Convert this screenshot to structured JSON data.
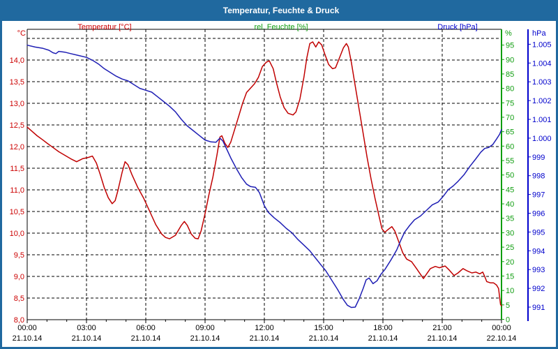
{
  "window": {
    "title": "Temperatur, Feuchte & Druck"
  },
  "legend": {
    "temperature": "Temperatur [°C]",
    "humidity": "rel. Feuchte [%]",
    "pressure": "Druck [hPa]"
  },
  "units": {
    "temperature": "°C",
    "humidity": "%",
    "pressure": "hPa"
  },
  "colors": {
    "titlebar": "#20699f",
    "temperature_label": "#cc0000",
    "temperature_curve": "#c00000",
    "humidity_label": "#0f9d0f",
    "humidity_axis": "#0f9d0f",
    "pressure_label": "#0000cc",
    "pressure_curve": "#1e1eb4",
    "grid": "#000000",
    "date_text": "#000000"
  },
  "chart_data": {
    "type": "line",
    "title": "Temperatur, Feuchte & Druck",
    "grid": "dashed, 0.5 °C horizontal steps, 3 h vertical steps",
    "legend_position": "top",
    "x_axis": {
      "range_hours": [
        0,
        24
      ],
      "major_tick_hours": 3,
      "minor_tick_hours": 1,
      "gridline_hours": [
        3,
        6,
        9,
        12,
        15,
        18,
        21
      ],
      "ticks": [
        {
          "hour": 0,
          "time": "00:00",
          "date": "21.10.14"
        },
        {
          "hour": 3,
          "time": "03:00",
          "date": "21.10.14"
        },
        {
          "hour": 6,
          "time": "06:00",
          "date": "21.10.14"
        },
        {
          "hour": 9,
          "time": "09:00",
          "date": "21.10.14"
        },
        {
          "hour": 12,
          "time": "12:00",
          "date": "21.10.14"
        },
        {
          "hour": 15,
          "time": "15:00",
          "date": "21.10.14"
        },
        {
          "hour": 18,
          "time": "18:00",
          "date": "21.10.14"
        },
        {
          "hour": 21,
          "time": "21:00",
          "date": "21.10.14"
        },
        {
          "hour": 24,
          "time": "00:00",
          "date": "22.10.14"
        }
      ]
    },
    "y_axis_temperature": {
      "unit": "°C",
      "side": "left",
      "min": 8.0,
      "max": 14.7,
      "grid_step": 0.5,
      "tick_labels": [
        {
          "value": 8.0,
          "label": "8,0"
        },
        {
          "value": 8.5,
          "label": "8,5"
        },
        {
          "value": 9.0,
          "label": "9,0"
        },
        {
          "value": 9.5,
          "label": "9,5"
        },
        {
          "value": 10.0,
          "label": "10,0"
        },
        {
          "value": 10.5,
          "label": "10,5"
        },
        {
          "value": 11.0,
          "label": "11,0"
        },
        {
          "value": 11.5,
          "label": "11,5"
        },
        {
          "value": 12.0,
          "label": "12,0"
        },
        {
          "value": 12.5,
          "label": "12,5"
        },
        {
          "value": 13.0,
          "label": "13,0"
        },
        {
          "value": 13.5,
          "label": "13,5"
        },
        {
          "value": 14.0,
          "label": "14,0"
        }
      ]
    },
    "y_axis_humidity": {
      "unit": "%",
      "side": "right-inner",
      "min": 0,
      "max": 97.5,
      "tick_step": 5,
      "tick_labels": [
        {
          "value": 0,
          "label": "0"
        },
        {
          "value": 5,
          "label": "5"
        },
        {
          "value": 10,
          "label": "10"
        },
        {
          "value": 15,
          "label": "15"
        },
        {
          "value": 20,
          "label": "20"
        },
        {
          "value": 25,
          "label": "25"
        },
        {
          "value": 30,
          "label": "30"
        },
        {
          "value": 35,
          "label": "35"
        },
        {
          "value": 40,
          "label": "40"
        },
        {
          "value": 45,
          "label": "45"
        },
        {
          "value": 50,
          "label": "50"
        },
        {
          "value": 55,
          "label": "55"
        },
        {
          "value": 60,
          "label": "60"
        },
        {
          "value": 65,
          "label": "65"
        },
        {
          "value": 70,
          "label": "70"
        },
        {
          "value": 75,
          "label": "75"
        },
        {
          "value": 80,
          "label": "80"
        },
        {
          "value": 85,
          "label": "85"
        },
        {
          "value": 90,
          "label": "90"
        },
        {
          "value": 95,
          "label": "95"
        }
      ],
      "note": "axis shown, no humidity curve visible in plot"
    },
    "y_axis_pressure": {
      "unit": "hPa",
      "side": "right-outer",
      "min": 990.4,
      "max": 1005.4,
      "tick_step": 1,
      "tick_labels": [
        {
          "value": 991,
          "label": "991"
        },
        {
          "value": 992,
          "label": "992"
        },
        {
          "value": 993,
          "label": "993"
        },
        {
          "value": 994,
          "label": "994"
        },
        {
          "value": 995,
          "label": "995"
        },
        {
          "value": 996,
          "label": "996"
        },
        {
          "value": 997,
          "label": "997"
        },
        {
          "value": 998,
          "label": "998"
        },
        {
          "value": 999,
          "label": "999"
        },
        {
          "value": 1000,
          "label": "1.000"
        },
        {
          "value": 1001,
          "label": "1.001"
        },
        {
          "value": 1002,
          "label": "1.002"
        },
        {
          "value": 1003,
          "label": "1.003"
        },
        {
          "value": 1004,
          "label": "1.004"
        },
        {
          "value": 1005,
          "label": "1.005"
        }
      ]
    },
    "series": [
      {
        "name": "Temperatur",
        "axis": "temperature",
        "color": "#c00000",
        "points": [
          [
            0,
            12.45
          ],
          [
            0.2,
            12.37
          ],
          [
            0.5,
            12.25
          ],
          [
            0.8,
            12.15
          ],
          [
            1.0,
            12.08
          ],
          [
            1.3,
            11.98
          ],
          [
            1.6,
            11.88
          ],
          [
            1.9,
            11.8
          ],
          [
            2.2,
            11.72
          ],
          [
            2.5,
            11.65
          ],
          [
            2.8,
            11.72
          ],
          [
            3.1,
            11.75
          ],
          [
            3.3,
            11.78
          ],
          [
            3.5,
            11.62
          ],
          [
            3.7,
            11.35
          ],
          [
            3.9,
            11.05
          ],
          [
            4.1,
            10.82
          ],
          [
            4.3,
            10.68
          ],
          [
            4.45,
            10.75
          ],
          [
            4.6,
            11.0
          ],
          [
            4.8,
            11.4
          ],
          [
            4.95,
            11.65
          ],
          [
            5.1,
            11.58
          ],
          [
            5.3,
            11.35
          ],
          [
            5.6,
            11.05
          ],
          [
            5.9,
            10.8
          ],
          [
            6.2,
            10.5
          ],
          [
            6.5,
            10.2
          ],
          [
            6.8,
            9.98
          ],
          [
            7.0,
            9.9
          ],
          [
            7.2,
            9.87
          ],
          [
            7.5,
            9.95
          ],
          [
            7.8,
            10.18
          ],
          [
            7.95,
            10.27
          ],
          [
            8.1,
            10.18
          ],
          [
            8.3,
            9.98
          ],
          [
            8.5,
            9.88
          ],
          [
            8.65,
            9.87
          ],
          [
            8.8,
            10.05
          ],
          [
            9.0,
            10.45
          ],
          [
            9.2,
            10.9
          ],
          [
            9.4,
            11.3
          ],
          [
            9.6,
            11.8
          ],
          [
            9.75,
            12.22
          ],
          [
            9.85,
            12.25
          ],
          [
            10.0,
            12.08
          ],
          [
            10.15,
            11.98
          ],
          [
            10.3,
            12.1
          ],
          [
            10.5,
            12.4
          ],
          [
            10.7,
            12.7
          ],
          [
            10.9,
            13.0
          ],
          [
            11.1,
            13.25
          ],
          [
            11.3,
            13.35
          ],
          [
            11.5,
            13.45
          ],
          [
            11.7,
            13.6
          ],
          [
            11.9,
            13.85
          ],
          [
            12.1,
            13.95
          ],
          [
            12.25,
            13.98
          ],
          [
            12.45,
            13.8
          ],
          [
            12.6,
            13.5
          ],
          [
            12.8,
            13.15
          ],
          [
            13.0,
            12.9
          ],
          [
            13.2,
            12.77
          ],
          [
            13.45,
            12.73
          ],
          [
            13.6,
            12.8
          ],
          [
            13.8,
            13.1
          ],
          [
            14.0,
            13.6
          ],
          [
            14.15,
            14.05
          ],
          [
            14.3,
            14.38
          ],
          [
            14.45,
            14.42
          ],
          [
            14.6,
            14.3
          ],
          [
            14.75,
            14.42
          ],
          [
            14.9,
            14.35
          ],
          [
            15.05,
            14.15
          ],
          [
            15.25,
            13.9
          ],
          [
            15.45,
            13.8
          ],
          [
            15.6,
            13.82
          ],
          [
            15.8,
            14.05
          ],
          [
            16.0,
            14.28
          ],
          [
            16.15,
            14.38
          ],
          [
            16.25,
            14.3
          ],
          [
            16.4,
            13.95
          ],
          [
            16.6,
            13.4
          ],
          [
            16.8,
            12.85
          ],
          [
            17.0,
            12.3
          ],
          [
            17.2,
            11.75
          ],
          [
            17.4,
            11.25
          ],
          [
            17.6,
            10.8
          ],
          [
            17.8,
            10.4
          ],
          [
            17.95,
            10.1
          ],
          [
            18.1,
            10.02
          ],
          [
            18.25,
            10.08
          ],
          [
            18.45,
            10.15
          ],
          [
            18.6,
            10.05
          ],
          [
            18.8,
            9.8
          ],
          [
            19.0,
            9.55
          ],
          [
            19.2,
            9.4
          ],
          [
            19.45,
            9.34
          ],
          [
            19.7,
            9.18
          ],
          [
            19.9,
            9.05
          ],
          [
            20.05,
            8.95
          ],
          [
            20.2,
            9.05
          ],
          [
            20.4,
            9.18
          ],
          [
            20.65,
            9.23
          ],
          [
            20.85,
            9.2
          ],
          [
            21.0,
            9.22
          ],
          [
            21.15,
            9.24
          ],
          [
            21.35,
            9.15
          ],
          [
            21.6,
            9.02
          ],
          [
            21.8,
            9.08
          ],
          [
            22.05,
            9.18
          ],
          [
            22.25,
            9.13
          ],
          [
            22.5,
            9.08
          ],
          [
            22.7,
            9.1
          ],
          [
            22.9,
            9.06
          ],
          [
            23.05,
            9.1
          ],
          [
            23.15,
            9.0
          ],
          [
            23.25,
            8.88
          ],
          [
            23.45,
            8.85
          ],
          [
            23.6,
            8.85
          ],
          [
            23.75,
            8.8
          ],
          [
            23.85,
            8.72
          ],
          [
            23.95,
            8.35
          ],
          [
            24.0,
            8.32
          ]
        ]
      },
      {
        "name": "Druck",
        "axis": "pressure",
        "color": "#1e1eb4",
        "points": [
          [
            0,
            1004.95
          ],
          [
            0.4,
            1004.85
          ],
          [
            0.8,
            1004.78
          ],
          [
            1.1,
            1004.68
          ],
          [
            1.3,
            1004.55
          ],
          [
            1.45,
            1004.5
          ],
          [
            1.6,
            1004.62
          ],
          [
            1.9,
            1004.58
          ],
          [
            2.2,
            1004.5
          ],
          [
            2.6,
            1004.4
          ],
          [
            3.0,
            1004.3
          ],
          [
            3.3,
            1004.15
          ],
          [
            3.6,
            1003.95
          ],
          [
            3.9,
            1003.7
          ],
          [
            4.2,
            1003.5
          ],
          [
            4.5,
            1003.3
          ],
          [
            4.8,
            1003.15
          ],
          [
            5.1,
            1003.05
          ],
          [
            5.4,
            1002.85
          ],
          [
            5.7,
            1002.65
          ],
          [
            6.0,
            1002.55
          ],
          [
            6.3,
            1002.45
          ],
          [
            6.6,
            1002.2
          ],
          [
            6.9,
            1001.95
          ],
          [
            7.2,
            1001.7
          ],
          [
            7.5,
            1001.4
          ],
          [
            7.8,
            1001.0
          ],
          [
            8.1,
            1000.65
          ],
          [
            8.4,
            1000.4
          ],
          [
            8.7,
            1000.15
          ],
          [
            9.0,
            999.9
          ],
          [
            9.3,
            999.8
          ],
          [
            9.55,
            999.78
          ],
          [
            9.75,
            1000.0
          ],
          [
            9.9,
            999.85
          ],
          [
            10.1,
            999.4
          ],
          [
            10.3,
            998.95
          ],
          [
            10.6,
            998.35
          ],
          [
            10.85,
            997.9
          ],
          [
            11.1,
            997.55
          ],
          [
            11.3,
            997.42
          ],
          [
            11.55,
            997.38
          ],
          [
            11.75,
            997.1
          ],
          [
            12.0,
            996.4
          ],
          [
            12.2,
            996.05
          ],
          [
            12.5,
            995.75
          ],
          [
            12.8,
            995.5
          ],
          [
            13.1,
            995.2
          ],
          [
            13.4,
            994.95
          ],
          [
            13.7,
            994.6
          ],
          [
            14.0,
            994.3
          ],
          [
            14.3,
            994.0
          ],
          [
            14.6,
            993.6
          ],
          [
            14.9,
            993.2
          ],
          [
            15.1,
            992.95
          ],
          [
            15.4,
            992.45
          ],
          [
            15.7,
            991.95
          ],
          [
            16.0,
            991.4
          ],
          [
            16.2,
            991.1
          ],
          [
            16.4,
            990.98
          ],
          [
            16.6,
            991.0
          ],
          [
            16.8,
            991.45
          ],
          [
            17.0,
            992.0
          ],
          [
            17.15,
            992.45
          ],
          [
            17.3,
            992.55
          ],
          [
            17.5,
            992.25
          ],
          [
            17.7,
            992.4
          ],
          [
            17.9,
            992.75
          ],
          [
            18.1,
            993.0
          ],
          [
            18.4,
            993.5
          ],
          [
            18.7,
            994.05
          ],
          [
            18.9,
            994.55
          ],
          [
            19.1,
            995.0
          ],
          [
            19.35,
            995.35
          ],
          [
            19.6,
            995.65
          ],
          [
            19.9,
            995.85
          ],
          [
            20.2,
            996.15
          ],
          [
            20.5,
            996.45
          ],
          [
            20.8,
            996.6
          ],
          [
            21.05,
            996.9
          ],
          [
            21.3,
            997.25
          ],
          [
            21.55,
            997.45
          ],
          [
            21.8,
            997.7
          ],
          [
            22.1,
            998.05
          ],
          [
            22.4,
            998.5
          ],
          [
            22.7,
            998.9
          ],
          [
            22.95,
            999.25
          ],
          [
            23.15,
            999.45
          ],
          [
            23.35,
            999.5
          ],
          [
            23.55,
            999.65
          ],
          [
            23.75,
            999.95
          ],
          [
            23.9,
            1000.2
          ],
          [
            24.0,
            1000.45
          ]
        ]
      }
    ]
  }
}
